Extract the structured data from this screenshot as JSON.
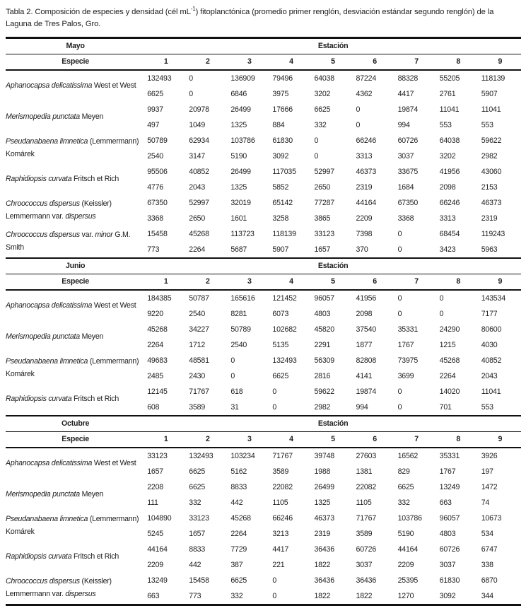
{
  "title": {
    "prefix": "Tabla 2. Composición de especies y densidad (cél mL",
    "sup": "-1",
    "suffix": ") fitoplanctónica (promedio primer renglón, desviación estándar segundo renglón) de la Laguna de Tres Palos, Gro."
  },
  "table": {
    "station_header": "Estación",
    "species_header": "Especie",
    "stations": [
      "1",
      "2",
      "3",
      "4",
      "5",
      "6",
      "7",
      "8",
      "9"
    ],
    "months": [
      {
        "name": "Mayo",
        "rows": [
          {
            "name": [
              {
                "t": "Aphanocapsa delicatissima",
                "i": true
              },
              {
                "t": " West et West",
                "i": false
              }
            ],
            "mean": [
              132493,
              0,
              136909,
              79496,
              64038,
              87224,
              88328,
              55205,
              118139
            ],
            "sd": [
              6625,
              0,
              6846,
              3975,
              3202,
              4362,
              4417,
              2761,
              5907
            ]
          },
          {
            "name": [
              {
                "t": "Merismopedia punctata",
                "i": true
              },
              {
                "t": " Meyen",
                "i": false
              }
            ],
            "mean": [
              9937,
              20978,
              26499,
              17666,
              6625,
              0,
              19874,
              11041,
              11041
            ],
            "sd": [
              497,
              1049,
              1325,
              884,
              332,
              0,
              994,
              553,
              553
            ]
          },
          {
            "name": [
              {
                "t": "Pseudanabaena limnetica",
                "i": true
              },
              {
                "t": " (Lemmermann) Komárek",
                "i": false
              }
            ],
            "mean": [
              50789,
              62934,
              103786,
              61830,
              0,
              66246,
              60726,
              64038,
              59622
            ],
            "sd": [
              2540,
              3147,
              5190,
              3092,
              0,
              3313,
              3037,
              3202,
              2982
            ]
          },
          {
            "name": [
              {
                "t": "Raphidiopsis curvata",
                "i": true
              },
              {
                "t": " Fritsch et Rich",
                "i": false
              }
            ],
            "mean": [
              95506,
              40852,
              26499,
              117035,
              52997,
              46373,
              33675,
              41956,
              43060
            ],
            "sd": [
              4776,
              2043,
              1325,
              5852,
              2650,
              2319,
              1684,
              2098,
              2153
            ]
          },
          {
            "name": [
              {
                "t": "Chroococcus dispersus",
                "i": true
              },
              {
                "t": " (Keissler) Lemmermann var. ",
                "i": false
              },
              {
                "t": "dispersus",
                "i": true
              }
            ],
            "mean": [
              67350,
              52997,
              32019,
              65142,
              77287,
              44164,
              67350,
              66246,
              46373
            ],
            "sd": [
              3368,
              2650,
              1601,
              3258,
              3865,
              2209,
              3368,
              3313,
              2319
            ]
          },
          {
            "name": [
              {
                "t": "Chroococcus dispersus",
                "i": true
              },
              {
                "t": " var. ",
                "i": false
              },
              {
                "t": "minor",
                "i": true
              },
              {
                "t": " G.M. Smith",
                "i": false
              }
            ],
            "mean": [
              15458,
              45268,
              113723,
              118139,
              33123,
              7398,
              0,
              68454,
              119243
            ],
            "sd": [
              773,
              2264,
              5687,
              5907,
              1657,
              370,
              0,
              3423,
              5963
            ]
          }
        ]
      },
      {
        "name": "Junio",
        "rows": [
          {
            "name": [
              {
                "t": "Aphanocapsa delicatissima",
                "i": true
              },
              {
                "t": " West et West",
                "i": false
              }
            ],
            "mean": [
              184385,
              50787,
              165616,
              121452,
              96057,
              41956,
              0,
              0,
              143534
            ],
            "sd": [
              9220,
              2540,
              8281,
              6073,
              4803,
              2098,
              0,
              0,
              7177
            ]
          },
          {
            "name": [
              {
                "t": "Merismopedia punctata",
                "i": true
              },
              {
                "t": " Meyen",
                "i": false
              }
            ],
            "mean": [
              45268,
              34227,
              50789,
              102682,
              45820,
              37540,
              35331,
              24290,
              80600
            ],
            "sd": [
              2264,
              1712,
              2540,
              5135,
              2291,
              1877,
              1767,
              1215,
              4030
            ]
          },
          {
            "name": [
              {
                "t": "Pseudanabaena limnetica",
                "i": true
              },
              {
                "t": " (Lemmermann) Komárek",
                "i": false
              }
            ],
            "mean": [
              49683,
              48581,
              0,
              132493,
              56309,
              82808,
              73975,
              45268,
              40852
            ],
            "sd": [
              2485,
              2430,
              0,
              6625,
              2816,
              4141,
              3699,
              2264,
              2043
            ]
          },
          {
            "name": [
              {
                "t": "Raphidiopsis curvata",
                "i": true
              },
              {
                "t": " Fritsch et Rich",
                "i": false
              }
            ],
            "mean": [
              12145,
              71767,
              618,
              0,
              59622,
              19874,
              0,
              14020,
              11041
            ],
            "sd": [
              608,
              3589,
              31,
              0,
              2982,
              994,
              0,
              701,
              553
            ]
          }
        ]
      },
      {
        "name": "Octubre",
        "rows": [
          {
            "name": [
              {
                "t": "Aphanocapsa delicatissima",
                "i": true
              },
              {
                "t": " West et West",
                "i": false
              }
            ],
            "mean": [
              33123,
              132493,
              103234,
              71767,
              39748,
              27603,
              16562,
              35331,
              3926
            ],
            "sd": [
              1657,
              6625,
              5162,
              3589,
              1988,
              1381,
              829,
              1767,
              197
            ]
          },
          {
            "name": [
              {
                "t": "Merismopedia punctata",
                "i": true
              },
              {
                "t": " Meyen",
                "i": false
              }
            ],
            "mean": [
              2208,
              6625,
              8833,
              22082,
              26499,
              22082,
              6625,
              13249,
              1472
            ],
            "sd": [
              111,
              332,
              442,
              1105,
              1325,
              1105,
              332,
              663,
              74
            ]
          },
          {
            "name": [
              {
                "t": "Pseudanabaena limnetica",
                "i": true
              },
              {
                "t": " (Lemmermann) Komárek",
                "i": false
              }
            ],
            "mean": [
              104890,
              33123,
              45268,
              66246,
              46373,
              71767,
              103786,
              96057,
              10673
            ],
            "sd": [
              5245,
              1657,
              2264,
              3213,
              2319,
              3589,
              5190,
              4803,
              534
            ]
          },
          {
            "name": [
              {
                "t": "Raphidiopsis curvata",
                "i": true
              },
              {
                "t": " Fritsch et Rich",
                "i": false
              }
            ],
            "mean": [
              44164,
              8833,
              7729,
              4417,
              36436,
              60726,
              44164,
              60726,
              6747
            ],
            "sd": [
              2209,
              442,
              387,
              221,
              1822,
              3037,
              2209,
              3037,
              338
            ]
          },
          {
            "name": [
              {
                "t": "Chroococcus dispersus",
                "i": true
              },
              {
                "t": " (Keissler) Lemmermann var. ",
                "i": false
              },
              {
                "t": "dispersus",
                "i": true
              }
            ],
            "mean": [
              13249,
              15458,
              6625,
              0,
              36436,
              36436,
              25395,
              61830,
              6870
            ],
            "sd": [
              663,
              773,
              332,
              0,
              1822,
              1822,
              1270,
              3092,
              344
            ]
          }
        ]
      }
    ]
  }
}
